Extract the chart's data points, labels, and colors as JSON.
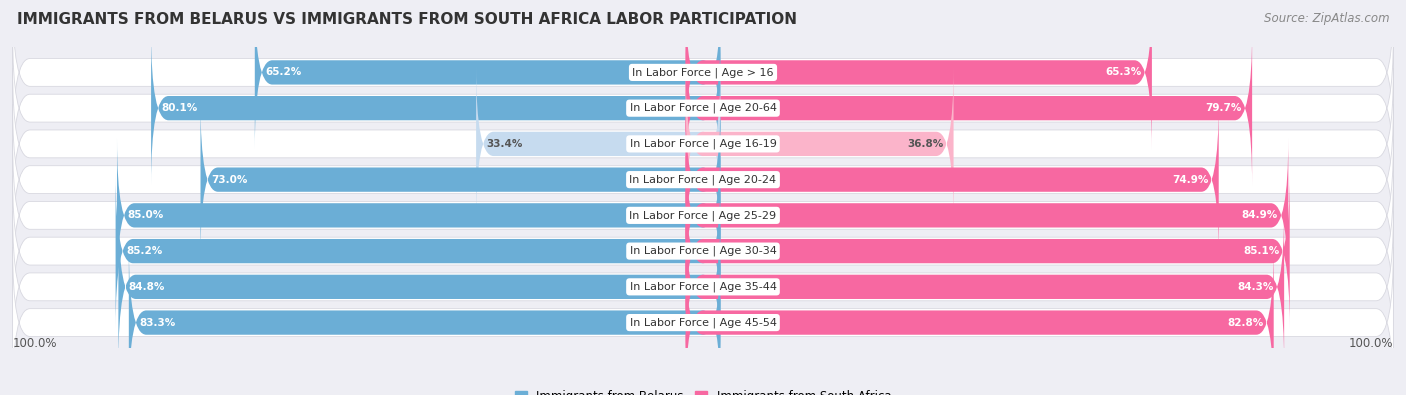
{
  "title": "IMMIGRANTS FROM BELARUS VS IMMIGRANTS FROM SOUTH AFRICA LABOR PARTICIPATION",
  "source": "Source: ZipAtlas.com",
  "categories": [
    "In Labor Force | Age > 16",
    "In Labor Force | Age 20-64",
    "In Labor Force | Age 16-19",
    "In Labor Force | Age 20-24",
    "In Labor Force | Age 25-29",
    "In Labor Force | Age 30-34",
    "In Labor Force | Age 35-44",
    "In Labor Force | Age 45-54"
  ],
  "belarus_values": [
    65.2,
    80.1,
    33.4,
    73.0,
    85.0,
    85.2,
    84.8,
    83.3
  ],
  "southafrica_values": [
    65.3,
    79.7,
    36.8,
    74.9,
    84.9,
    85.1,
    84.3,
    82.8
  ],
  "belarus_color": "#6baed6",
  "southafrica_color": "#f768a1",
  "belarus_color_light": "#c6dbef",
  "southafrica_color_light": "#fbb4ca",
  "max_value": 100.0,
  "background_color": "#eeeef4",
  "legend_belarus": "Immigrants from Belarus",
  "legend_southafrica": "Immigrants from South Africa",
  "title_fontsize": 11,
  "source_fontsize": 8.5,
  "label_fontsize": 8,
  "value_fontsize": 7.5,
  "footer_fontsize": 8.5
}
